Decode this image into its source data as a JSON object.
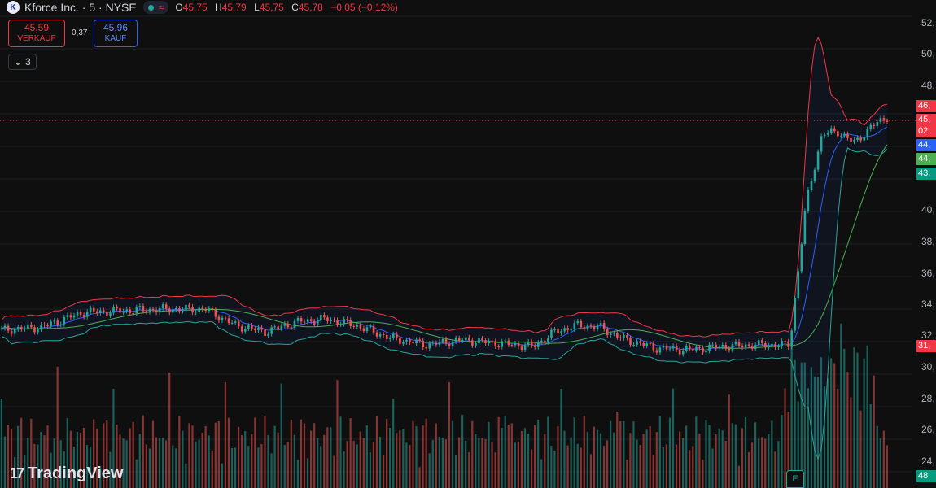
{
  "header": {
    "logo_letter": "K",
    "symbol": "Kforce Inc. · 5 · NYSE",
    "wave_icon": "≈",
    "ohlc": [
      {
        "label": "O",
        "value": "45,75"
      },
      {
        "label": "H",
        "value": "45,79"
      },
      {
        "label": "L",
        "value": "45,75"
      },
      {
        "label": "C",
        "value": "45,78"
      }
    ],
    "change": "−0,05 (−0,12%)"
  },
  "trade": {
    "sell_price": "45,59",
    "sell_label": "VERKAUF",
    "spread": "0,37",
    "buy_price": "45,96",
    "buy_label": "KAUF"
  },
  "collapse": {
    "count": "3"
  },
  "brand": "TradingView",
  "earnings_marker": "E",
  "price_axis": {
    "ticks": [
      "52,",
      "50,",
      "48,",
      "46,",
      "45,",
      "02:",
      "44,",
      "44,",
      "43,",
      "40,",
      "38,",
      "36,",
      "34,",
      "32,",
      "31,",
      "30,",
      "28,",
      "26,",
      "24,",
      "48"
    ]
  },
  "chart_data": {
    "type": "candlestick",
    "interval": "5",
    "ylim": [
      23,
      53
    ],
    "last_price": 45.78,
    "price_line": 45.59,
    "colors": {
      "up": "#26a69a",
      "down": "#ef5350",
      "bb_upper": "#f23645",
      "bb_lower": "#26a69a",
      "ma_fast": "#2962ff",
      "ma_slow": "#4caf50"
    },
    "segments": [
      {
        "from": 0,
        "to": 0.23,
        "price": [
          32.7,
          32.9,
          33.8,
          33.9,
          34.0,
          34.0
        ]
      },
      {
        "from": 0.23,
        "to": 0.4,
        "price": [
          34.0,
          33.0,
          32.6,
          33.2,
          33.4,
          33.0
        ]
      },
      {
        "from": 0.4,
        "to": 0.6,
        "price": [
          33.0,
          32.2,
          31.8,
          32.1,
          31.9,
          31.7
        ]
      },
      {
        "from": 0.6,
        "to": 0.7,
        "price": [
          31.7,
          32.6,
          33.0,
          32.9,
          32.2
        ]
      },
      {
        "from": 0.7,
        "to": 0.89,
        "price": [
          32.2,
          31.6,
          31.5,
          31.7,
          31.8,
          31.8
        ]
      },
      {
        "from": 0.89,
        "to": 1.0,
        "price": [
          31.8,
          40.5,
          44.8,
          44.9,
          44.2,
          45.2,
          45.8
        ]
      }
    ],
    "bands": {
      "upper_peak": 50.7,
      "lower_trough": 24.8
    },
    "volume_scale": "relative"
  }
}
